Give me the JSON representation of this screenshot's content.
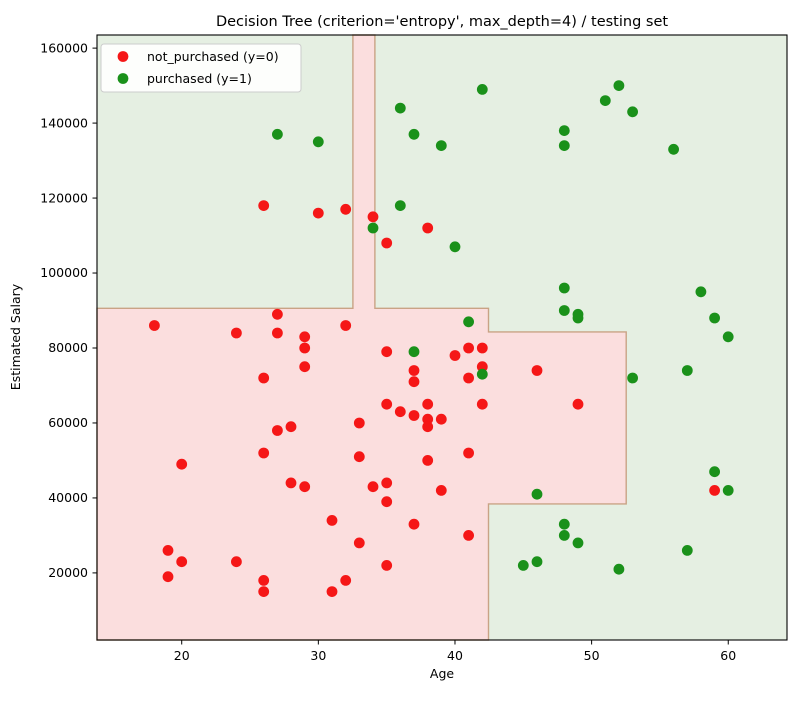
{
  "chart_data": {
    "type": "scatter",
    "title": "Decision Tree (criterion='entropy', max_depth=4) / testing set",
    "xlabel": "Age",
    "ylabel": "Estimated Salary",
    "x_ticks": [
      20,
      30,
      40,
      50,
      60
    ],
    "y_ticks": [
      20000,
      40000,
      60000,
      80000,
      100000,
      120000,
      140000,
      160000
    ],
    "x_range": [
      13.8,
      64.3
    ],
    "y_range": [
      2100,
      163500
    ],
    "grid": false,
    "legend_position": "upper left",
    "colors": {
      "region_not_purchased": "#fbdede",
      "region_purchased": "#e5efe2",
      "region_boundary": "#c9a385",
      "dot_not_purchased": "#f51717",
      "dot_purchased": "#1a911a",
      "frame": "#000000"
    },
    "regions": {
      "decision_thresholds": {
        "age": [
          32.5,
          34.1,
          42.45,
          52.5
        ],
        "salary": [
          38400,
          84300,
          90600
        ]
      },
      "not_purchased_polygon": [
        [
          13.8,
          90600
        ],
        [
          32.53,
          90600
        ],
        [
          32.53,
          163500
        ],
        [
          34.14,
          163500
        ],
        [
          34.14,
          90600
        ],
        [
          42.45,
          90600
        ],
        [
          42.45,
          84300
        ],
        [
          52.53,
          84300
        ],
        [
          52.53,
          38400
        ],
        [
          42.45,
          38400
        ],
        [
          42.45,
          2100
        ],
        [
          13.8,
          2100
        ]
      ]
    },
    "series": [
      {
        "name": "not_purchased (y=0)",
        "class_value": 0,
        "color": "#f51717",
        "points": [
          [
            18,
            86000
          ],
          [
            19,
            26000
          ],
          [
            19,
            19000
          ],
          [
            20,
            49000
          ],
          [
            20,
            23000
          ],
          [
            24,
            84000
          ],
          [
            24,
            23000
          ],
          [
            26,
            118000
          ],
          [
            26,
            72000
          ],
          [
            26,
            52000
          ],
          [
            26,
            18000
          ],
          [
            26,
            15000
          ],
          [
            27,
            89000
          ],
          [
            27,
            84000
          ],
          [
            27,
            58000
          ],
          [
            28,
            59000
          ],
          [
            28,
            44000
          ],
          [
            29,
            83000
          ],
          [
            29,
            80000
          ],
          [
            29,
            75000
          ],
          [
            29,
            43000
          ],
          [
            30,
            116000
          ],
          [
            31,
            34000
          ],
          [
            31,
            15000
          ],
          [
            32,
            117000
          ],
          [
            32,
            86000
          ],
          [
            32,
            18000
          ],
          [
            33,
            60000
          ],
          [
            33,
            51000
          ],
          [
            33,
            28000
          ],
          [
            34,
            115000
          ],
          [
            34,
            43000
          ],
          [
            35,
            108000
          ],
          [
            35,
            79000
          ],
          [
            35,
            65000
          ],
          [
            35,
            44000
          ],
          [
            35,
            39000
          ],
          [
            35,
            22000
          ],
          [
            36,
            63000
          ],
          [
            37,
            74000
          ],
          [
            37,
            71000
          ],
          [
            37,
            62000
          ],
          [
            37,
            33000
          ],
          [
            38,
            112000
          ],
          [
            38,
            65000
          ],
          [
            38,
            61000
          ],
          [
            38,
            59000
          ],
          [
            38,
            50000
          ],
          [
            39,
            61000
          ],
          [
            39,
            42000
          ],
          [
            40,
            78000
          ],
          [
            41,
            80000
          ],
          [
            41,
            72000
          ],
          [
            41,
            52000
          ],
          [
            41,
            30000
          ],
          [
            42,
            80000
          ],
          [
            42,
            75000
          ],
          [
            42,
            65000
          ],
          [
            46,
            74000
          ],
          [
            49,
            65000
          ],
          [
            59,
            42000
          ]
        ]
      },
      {
        "name": "purchased (y=1)",
        "class_value": 1,
        "color": "#1a911a",
        "points": [
          [
            27,
            137000
          ],
          [
            30,
            135000
          ],
          [
            34,
            112000
          ],
          [
            36,
            144000
          ],
          [
            36,
            118000
          ],
          [
            37,
            137000
          ],
          [
            37,
            79000
          ],
          [
            39,
            134000
          ],
          [
            40,
            107000
          ],
          [
            41,
            87000
          ],
          [
            42,
            149000
          ],
          [
            42,
            73000
          ],
          [
            45,
            22000
          ],
          [
            46,
            41000
          ],
          [
            46,
            23000
          ],
          [
            48,
            138000
          ],
          [
            48,
            134000
          ],
          [
            48,
            96000
          ],
          [
            48,
            90000
          ],
          [
            48,
            33000
          ],
          [
            48,
            30000
          ],
          [
            49,
            89000
          ],
          [
            49,
            88000
          ],
          [
            49,
            28000
          ],
          [
            51,
            146000
          ],
          [
            52,
            150000
          ],
          [
            52,
            21000
          ],
          [
            53,
            143000
          ],
          [
            53,
            72000
          ],
          [
            56,
            133000
          ],
          [
            57,
            74000
          ],
          [
            57,
            26000
          ],
          [
            58,
            95000
          ],
          [
            59,
            47000
          ],
          [
            59,
            88000
          ],
          [
            60,
            83000
          ],
          [
            60,
            42000
          ]
        ]
      }
    ]
  }
}
